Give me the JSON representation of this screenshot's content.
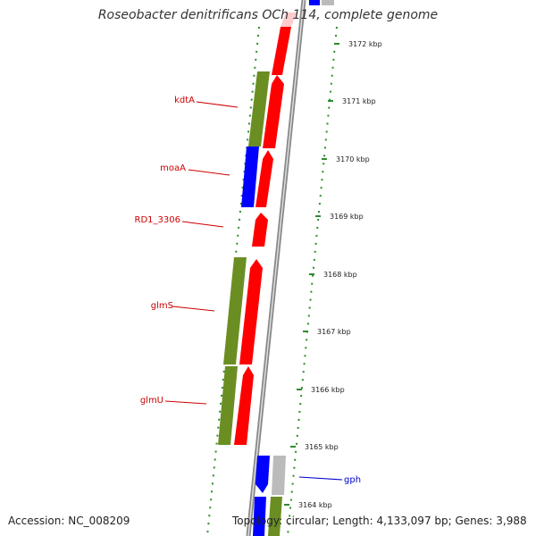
{
  "title": "Roseobacter denitrificans OCh 114, complete genome",
  "footer": {
    "accession": "Accession: NC_008209",
    "topology": "Topology: circular; Length: 4,133,097 bp; Genes: 3,988"
  },
  "colors": {
    "forward_cds": "#ff0000",
    "reverse_cds": "#0000ff",
    "other_cds": "#6b8e23",
    "grey_feature": "#bbbbbb",
    "backbone": "#888888",
    "tick_marks": "#2e8b2e",
    "gene_label_red": "#cc0000",
    "gene_label_blue": "#0000cc"
  },
  "scale_ticks": [
    {
      "kbp": 3172,
      "label": "3172 kbp"
    },
    {
      "kbp": 3171,
      "label": "3171 kbp"
    },
    {
      "kbp": 3170,
      "label": "3170 kbp"
    },
    {
      "kbp": 3169,
      "label": "3169 kbp"
    },
    {
      "kbp": 3168,
      "label": "3168 kbp"
    },
    {
      "kbp": 3167,
      "label": "3167 kbp"
    },
    {
      "kbp": 3166,
      "label": "3166 kbp"
    },
    {
      "kbp": 3165,
      "label": "3165 kbp"
    },
    {
      "kbp": 3164,
      "label": "3164 kbp"
    }
  ],
  "gene_labels": [
    {
      "name": "kdtA",
      "color": "red"
    },
    {
      "name": "moaA",
      "color": "red"
    },
    {
      "name": "RD1_3306",
      "color": "red"
    },
    {
      "name": "glmS",
      "color": "red"
    },
    {
      "name": "glmU",
      "color": "red"
    },
    {
      "name": "gph",
      "color": "blue"
    }
  ]
}
